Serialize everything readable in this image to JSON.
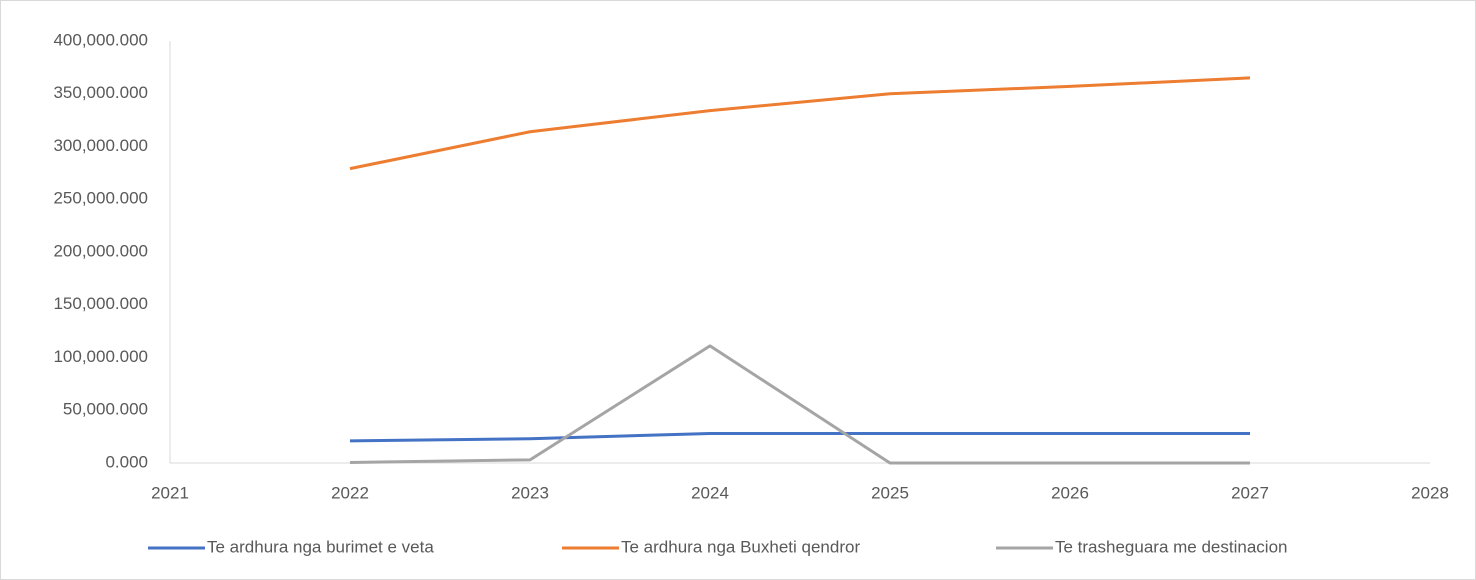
{
  "chart_data": {
    "type": "line",
    "x": [
      2022,
      2023,
      2024,
      2025,
      2026,
      2027
    ],
    "series": [
      {
        "name": "Te ardhura nga burimet e veta",
        "color": "#4472c4",
        "values": [
          21000,
          23000,
          28000,
          28000,
          28000,
          28000
        ]
      },
      {
        "name": "Te ardhura nga Buxheti qendror",
        "color": "#ed7d31",
        "values": [
          279000,
          314000,
          334000,
          350000,
          357000,
          365000
        ]
      },
      {
        "name": "Te trasheguara me destinacion",
        "color": "#a5a5a5",
        "values": [
          500,
          3000,
          111000,
          0,
          0,
          0
        ]
      }
    ],
    "xlim": [
      2021,
      2028
    ],
    "xticks": [
      2021,
      2022,
      2023,
      2024,
      2025,
      2026,
      2027,
      2028
    ],
    "ylim": [
      0,
      400000
    ],
    "yticks": [
      {
        "value": 0,
        "label": "0.000"
      },
      {
        "value": 50000,
        "label": "50,000.000"
      },
      {
        "value": 100000,
        "label": "100,000.000"
      },
      {
        "value": 150000,
        "label": "150,000.000"
      },
      {
        "value": 200000,
        "label": "200,000.000"
      },
      {
        "value": 250000,
        "label": "250,000.000"
      },
      {
        "value": 300000,
        "label": "300,000.000"
      },
      {
        "value": 350000,
        "label": "350,000.000"
      },
      {
        "value": 400000,
        "label": "400,000.000"
      }
    ],
    "grid": false,
    "legend": "bottom"
  }
}
